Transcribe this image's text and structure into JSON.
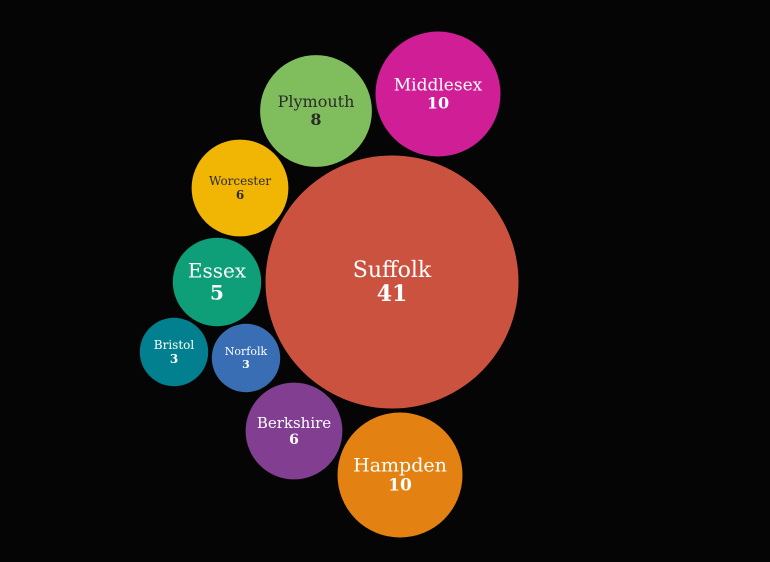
{
  "chart_data": {
    "type": "bubble",
    "background": "#050505",
    "bubbles": [
      {
        "name": "Suffolk",
        "value": 41,
        "color": "#cc5240",
        "text_color": "#ffffff"
      },
      {
        "name": "Middlesex",
        "value": 10,
        "color": "#d01f96",
        "text_color": "#ffffff"
      },
      {
        "name": "Hampden",
        "value": 10,
        "color": "#e38213",
        "text_color": "#ffffff"
      },
      {
        "name": "Plymouth",
        "value": 8,
        "color": "#80bd5c",
        "text_color": "#2b2b2b"
      },
      {
        "name": "Worcester",
        "value": 6,
        "color": "#f1b504",
        "text_color": "#2b2b2b"
      },
      {
        "name": "Berkshire",
        "value": 6,
        "color": "#823e91",
        "text_color": "#ffffff"
      },
      {
        "name": "Essex",
        "value": 5,
        "color": "#0e9e78",
        "text_color": "#ffffff"
      },
      {
        "name": "Norfolk",
        "value": 3,
        "color": "#3a6eb4",
        "text_color": "#ffffff"
      },
      {
        "name": "Bristol",
        "value": 3,
        "color": "#03808f",
        "text_color": "#ffffff"
      }
    ]
  }
}
